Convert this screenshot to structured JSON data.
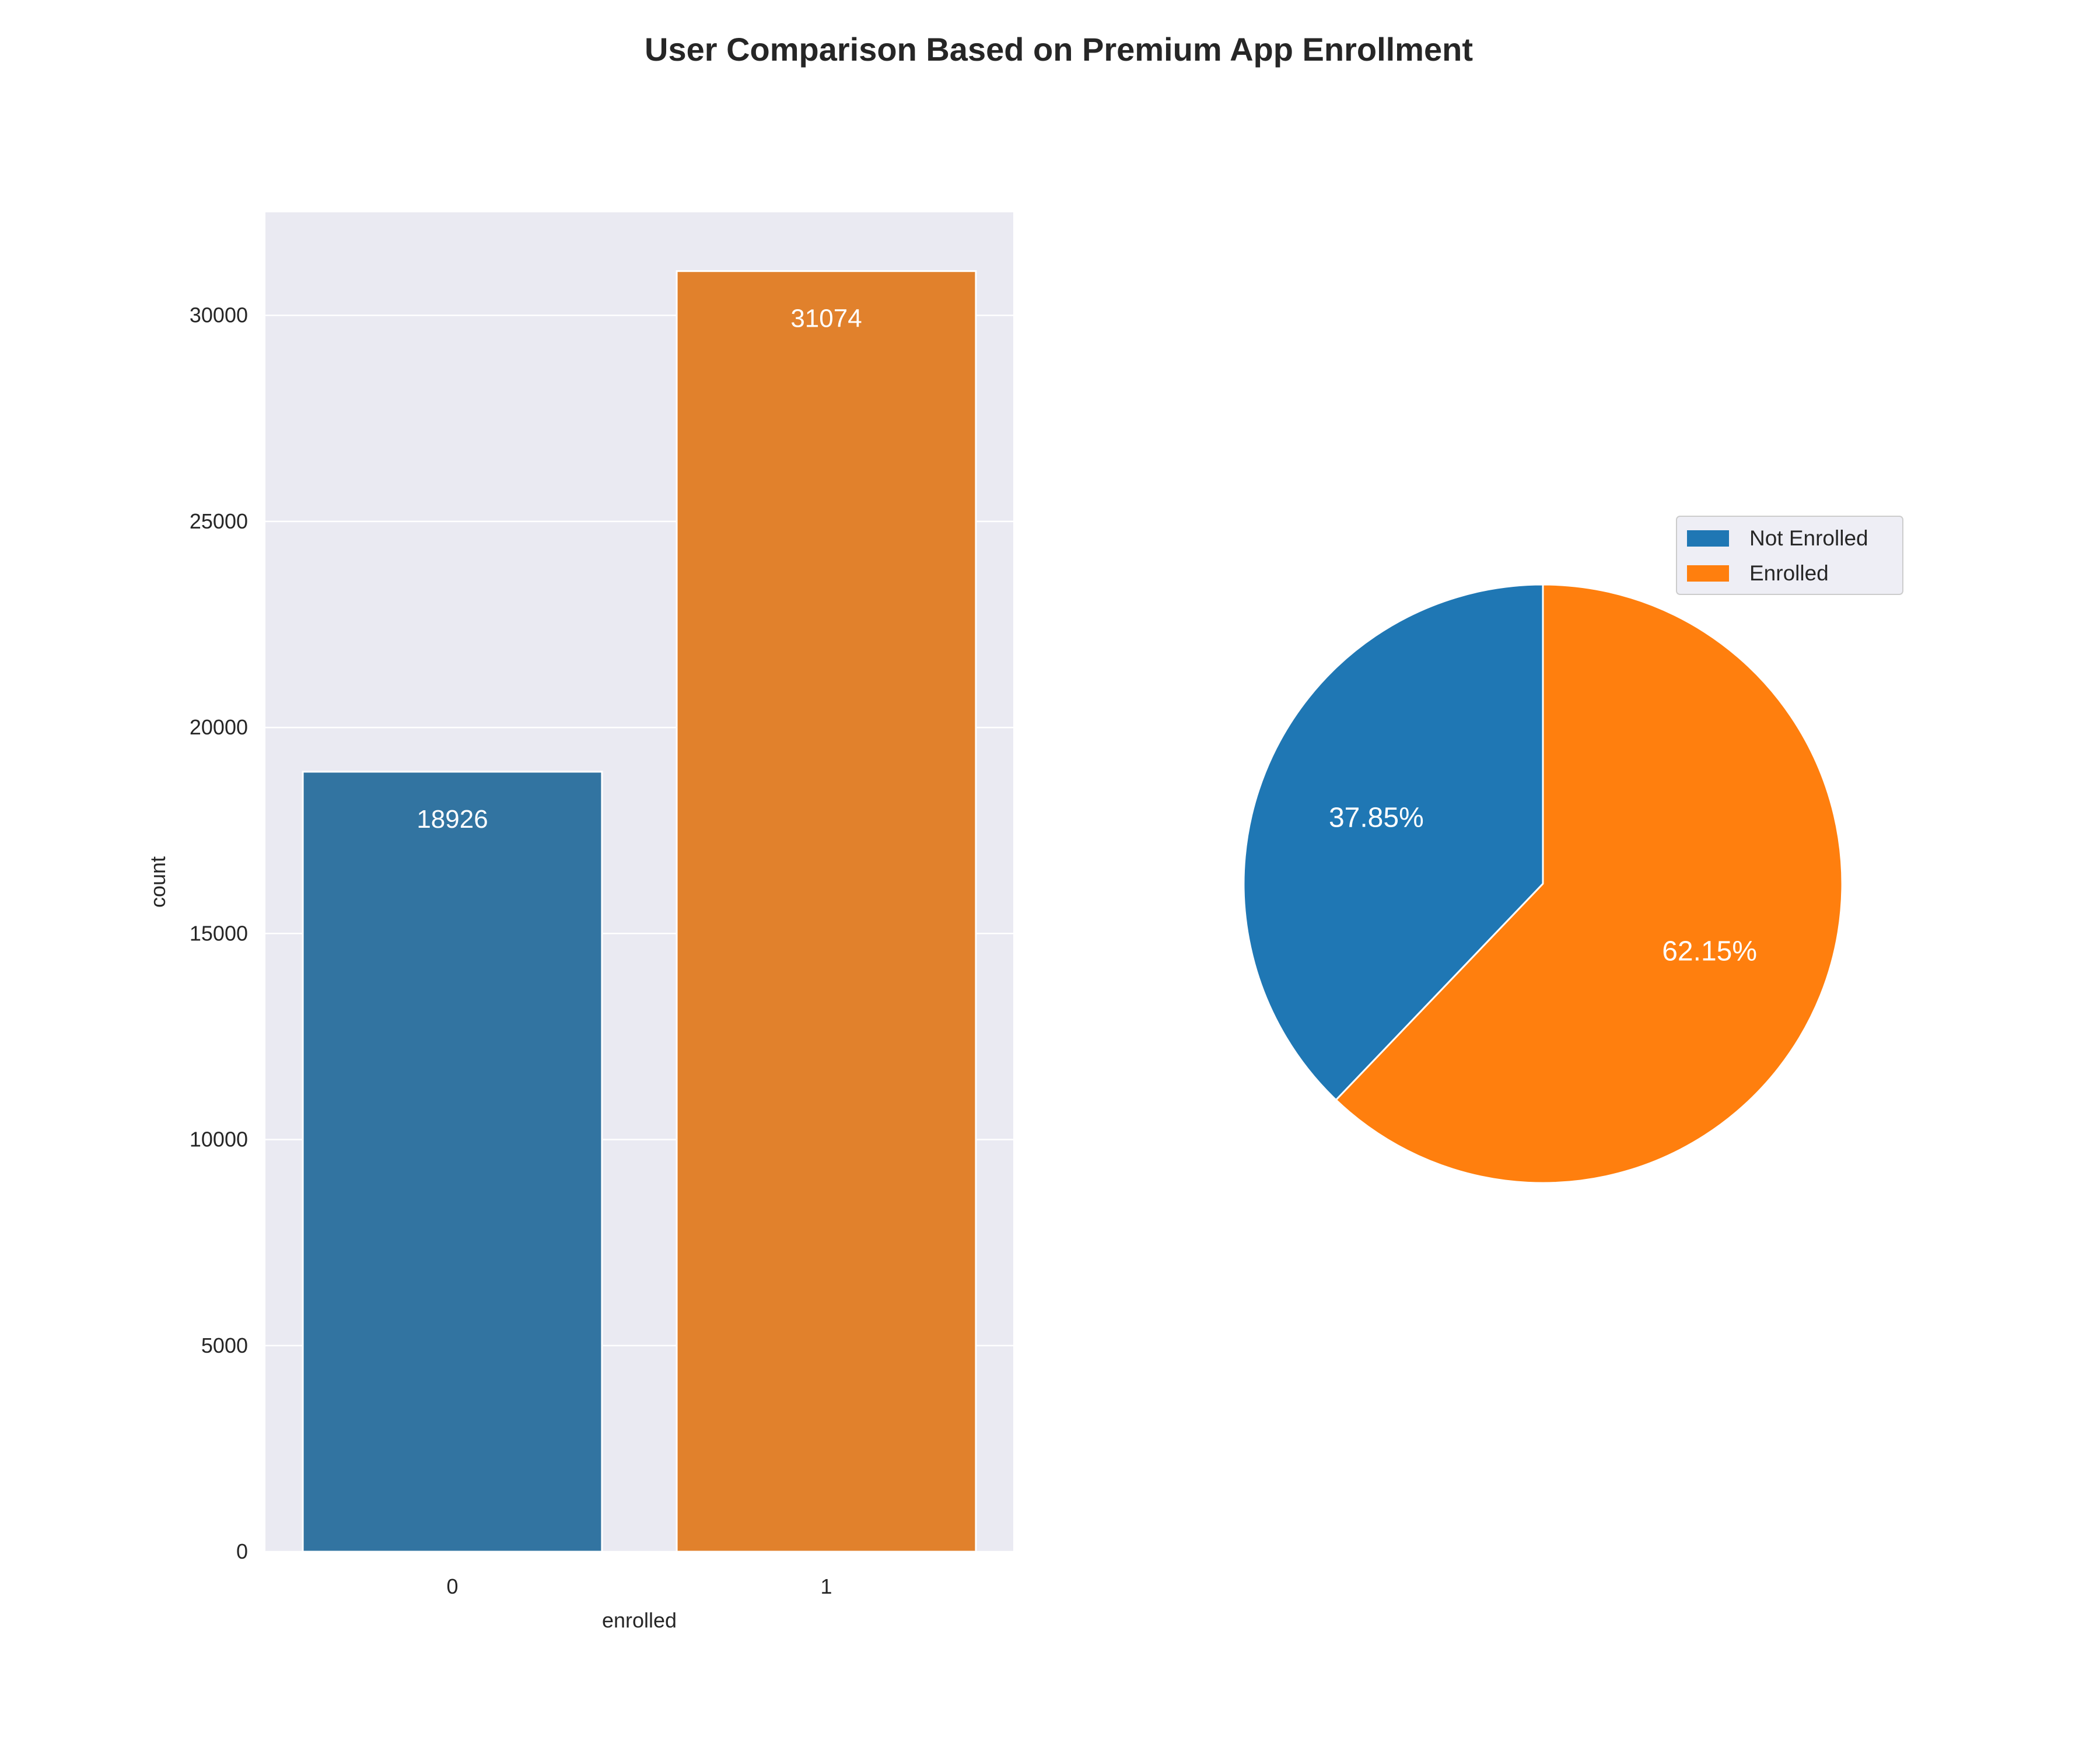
{
  "figure": {
    "title": "User Comparison Based on Premium App Enrollment"
  },
  "chart_data": [
    {
      "type": "bar",
      "categories": [
        "0",
        "1"
      ],
      "values": [
        18926,
        31074
      ],
      "data_labels": [
        "18926",
        "31074"
      ],
      "xlabel": "enrolled",
      "ylabel": "count",
      "ylim": [
        0,
        32500
      ],
      "yticks": [
        0,
        5000,
        10000,
        15000,
        20000,
        25000,
        30000
      ],
      "grid": true,
      "colors": [
        "#3274a1",
        "#e1812c"
      ],
      "background": "#eaeaf2"
    },
    {
      "type": "pie",
      "labels": [
        "Not Enrolled",
        "Enrolled"
      ],
      "values": [
        37.85,
        62.15
      ],
      "data_labels": [
        "37.85%",
        "62.15%"
      ],
      "colors": [
        "#1f77b4",
        "#ff7f0e"
      ],
      "start": "top, counter-clockwise",
      "legend": "top-right"
    }
  ]
}
